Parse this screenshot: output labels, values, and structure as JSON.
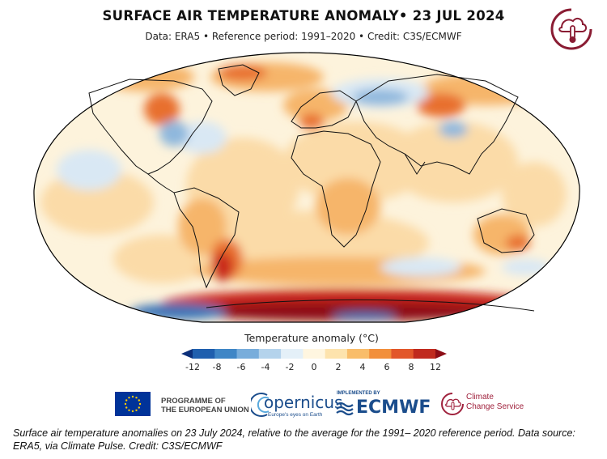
{
  "header": {
    "title": "SURFACE AIR TEMPERATURE ANOMALY• 23 JUL 2024",
    "subtitle": "Data: ERA5 • Reference period: 1991–2020 • Credit: C3S/ECMWF"
  },
  "colorbar": {
    "title": "Temperature anomaly (°C)",
    "ticks": [
      "-12",
      "-8",
      "-6",
      "-4",
      "-2",
      "0",
      "2",
      "4",
      "6",
      "8",
      "12"
    ],
    "colors": [
      "#0b2f7a",
      "#1f5fae",
      "#3f86c6",
      "#78addb",
      "#b4d3ec",
      "#e4f0f8",
      "#fff6e0",
      "#fde3ad",
      "#f9bd6a",
      "#f28f3b",
      "#e2572a",
      "#c02a1e",
      "#8c0d16"
    ]
  },
  "logos": {
    "eu": "PROGRAMME OF\nTHE EUROPEAN UNION",
    "copernicus": "opernicus",
    "copernicus_tag": "Europe's eyes on Earth",
    "ecmwf_impl": "IMPLEMENTED BY",
    "ecmwf": "ECMWF",
    "ccs_line1": "Climate",
    "ccs_line2": "Change Service"
  },
  "caption": "Surface air temperature anomalies on 23 July 2024, relative to the average for the 1991– 2020 reference period. Data source: ERA5, via Climate Pulse. Credit: C3S/ECMWF",
  "map_colors": {
    "neutral": "#fdf3dc",
    "warm_light": "#fbdba8",
    "warm": "#f6b56a",
    "hot": "#e8702f",
    "very_hot": "#c9261c",
    "extreme": "#8e0c14",
    "cool_light": "#d9e8f4",
    "cool": "#8fb8dd",
    "cold": "#3a74b8",
    "coast": "#111111"
  }
}
